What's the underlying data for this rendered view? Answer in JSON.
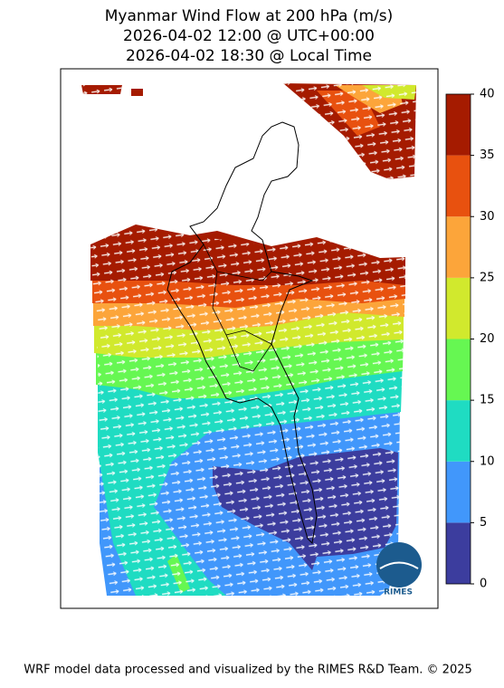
{
  "title": [
    "Myanmar Wind Flow at 200 hPa (m/s)",
    "2026-04-02 12:00 @ UTC+00:00",
    "2026-04-02 18:30 @ Local Time"
  ],
  "colorbar": {
    "lim": [
      0,
      40
    ],
    "ticks": [
      0,
      5,
      10,
      15,
      20,
      25,
      30,
      35,
      40
    ],
    "colors": [
      "#3c3d9e",
      "#4197fb",
      "#1fdcc2",
      "#66f752",
      "#d1e92d",
      "#fca53a",
      "#e8510f",
      "#a51b00"
    ]
  },
  "logo_text": "RIMES",
  "footer": "WRF model data processed and visualized by the RIMES R&D Team. © 2025"
}
